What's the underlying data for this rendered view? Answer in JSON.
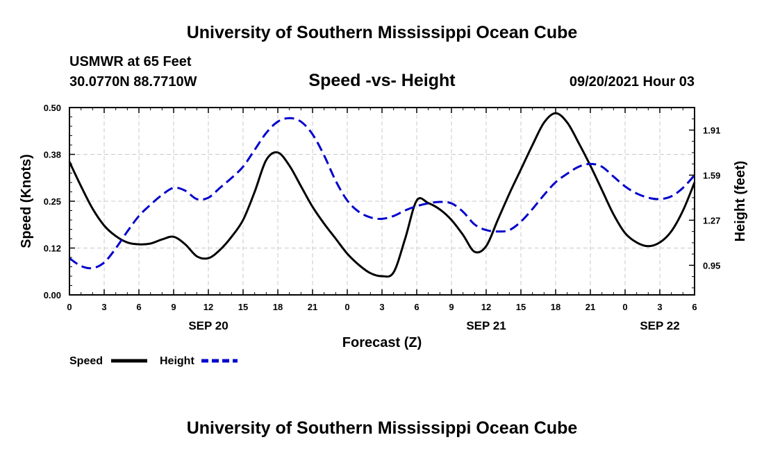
{
  "page": {
    "title_top": "University of Southern Mississippi Ocean Cube",
    "title_bottom": "University of Southern Mississippi Ocean Cube",
    "station": "USMWR at 65 Feet",
    "location": "30.0770N  88.7710W",
    "datetime": "09/20/2021 Hour 03"
  },
  "colors": {
    "speed": "#000000",
    "height": "#0000cc",
    "grid": "#c8c8c8"
  },
  "chart_data": {
    "type": "line",
    "title": "Speed -vs- Height",
    "xlabel": "Forecast (Z)",
    "ylabel": "Speed (Knots)",
    "y2label": "Height (feet)",
    "xlim": [
      0,
      54
    ],
    "ylim": [
      0,
      0.5
    ],
    "y2lim": [
      0.74,
      2.07
    ],
    "x_ticks": [
      0,
      3,
      6,
      9,
      12,
      15,
      18,
      21,
      24,
      27,
      30,
      33,
      36,
      39,
      42,
      45,
      48,
      51,
      54
    ],
    "x_tick_labels": [
      "0",
      "3",
      "6",
      "9",
      "12",
      "15",
      "18",
      "21",
      "0",
      "3",
      "6",
      "9",
      "12",
      "15",
      "18",
      "21",
      "0",
      "3",
      "6"
    ],
    "date_labels": [
      {
        "x": 12,
        "label": "SEP 20"
      },
      {
        "x": 36,
        "label": "SEP 21"
      },
      {
        "x": 51,
        "label": "SEP 22"
      }
    ],
    "y_ticks": [
      0.0,
      0.125,
      0.25,
      0.375,
      0.5
    ],
    "y_tick_labels": [
      "0.00",
      "0.12",
      "0.25",
      "0.38",
      "0.50"
    ],
    "y2_ticks": [
      0.95,
      1.27,
      1.59,
      1.91
    ],
    "y2_tick_labels": [
      "0.95",
      "1.27",
      "1.59",
      "1.91"
    ],
    "grid": true,
    "legend_position": "bottom-left",
    "series": [
      {
        "name": "Speed",
        "axis": "left",
        "color": "#000000",
        "dash": "solid",
        "x": [
          0,
          1,
          2,
          3,
          4,
          5,
          6,
          7,
          8,
          9,
          10,
          11,
          12,
          13,
          14,
          15,
          16,
          17,
          18,
          19,
          20,
          21,
          22,
          23,
          24,
          25,
          26,
          27,
          28,
          29,
          30,
          31,
          32,
          33,
          34,
          35,
          36,
          37,
          38,
          39,
          40,
          41,
          42,
          43,
          44,
          45,
          46,
          47,
          48,
          49,
          50,
          51,
          52,
          53,
          54
        ],
        "values": [
          0.355,
          0.29,
          0.23,
          0.185,
          0.157,
          0.14,
          0.135,
          0.137,
          0.148,
          0.155,
          0.135,
          0.103,
          0.098,
          0.12,
          0.155,
          0.2,
          0.275,
          0.36,
          0.38,
          0.345,
          0.29,
          0.235,
          0.19,
          0.15,
          0.11,
          0.08,
          0.058,
          0.05,
          0.06,
          0.15,
          0.252,
          0.245,
          0.228,
          0.2,
          0.16,
          0.115,
          0.13,
          0.2,
          0.27,
          0.335,
          0.4,
          0.46,
          0.485,
          0.46,
          0.405,
          0.345,
          0.28,
          0.215,
          0.165,
          0.14,
          0.13,
          0.14,
          0.17,
          0.225,
          0.3
        ]
      },
      {
        "name": "Height",
        "axis": "right",
        "color": "#0000cc",
        "dash": "dashed",
        "x": [
          0,
          1,
          2,
          3,
          4,
          5,
          6,
          7,
          8,
          9,
          10,
          11,
          12,
          13,
          14,
          15,
          16,
          17,
          18,
          19,
          20,
          21,
          22,
          23,
          24,
          25,
          26,
          27,
          28,
          29,
          30,
          31,
          32,
          33,
          34,
          35,
          36,
          37,
          38,
          39,
          40,
          41,
          42,
          43,
          44,
          45,
          46,
          47,
          48,
          49,
          50,
          51,
          52,
          53,
          54
        ],
        "values": [
          1.0,
          0.945,
          0.93,
          0.97,
          1.07,
          1.19,
          1.3,
          1.38,
          1.45,
          1.5,
          1.48,
          1.42,
          1.43,
          1.5,
          1.57,
          1.65,
          1.77,
          1.89,
          1.97,
          1.995,
          1.97,
          1.88,
          1.73,
          1.55,
          1.41,
          1.33,
          1.29,
          1.28,
          1.3,
          1.34,
          1.37,
          1.39,
          1.4,
          1.39,
          1.33,
          1.24,
          1.2,
          1.19,
          1.2,
          1.26,
          1.35,
          1.45,
          1.54,
          1.6,
          1.65,
          1.67,
          1.65,
          1.58,
          1.51,
          1.46,
          1.43,
          1.42,
          1.44,
          1.5,
          1.59
        ]
      }
    ]
  }
}
